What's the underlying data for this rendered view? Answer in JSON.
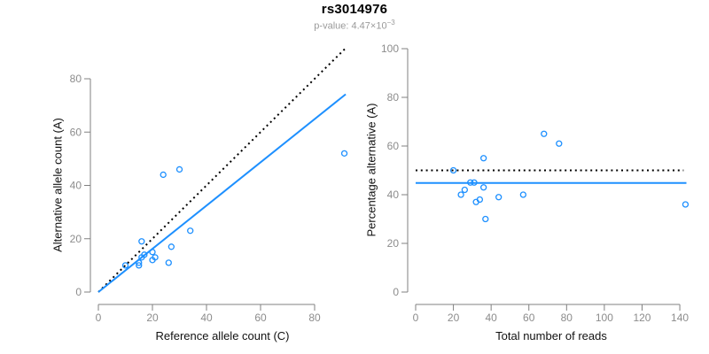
{
  "header": {
    "title": "rs3014976",
    "subtitle_prefix": "p-value: ",
    "subtitle_value": "4.47×10",
    "subtitle_exponent": "−3"
  },
  "colors": {
    "accent_blue": "#1E90FF",
    "reference_black": "#000000",
    "axis_gray": "#808080",
    "tick_label_gray": "#8c8c8c",
    "subtitle_gray": "#9a9a9a"
  },
  "chart_data": [
    {
      "id": "allele-count-scatter",
      "type": "scatter",
      "xlabel": "Reference allele count (C)",
      "ylabel": "Alternative allele count (A)",
      "xlim": [
        0,
        92
      ],
      "ylim": [
        0,
        92
      ],
      "xticks": [
        0,
        20,
        40,
        60,
        80
      ],
      "yticks": [
        0,
        20,
        40,
        60,
        80
      ],
      "grid": false,
      "legend": "none",
      "points": [
        [
          10,
          10
        ],
        [
          15,
          10
        ],
        [
          15,
          11
        ],
        [
          16,
          13
        ],
        [
          17,
          14
        ],
        [
          16,
          19
        ],
        [
          20,
          12
        ],
        [
          20,
          15
        ],
        [
          21,
          13
        ],
        [
          24,
          44
        ],
        [
          26,
          11
        ],
        [
          27,
          17
        ],
        [
          30,
          46
        ],
        [
          34,
          23
        ],
        [
          91,
          52
        ]
      ],
      "lines": [
        {
          "name": "expected-1-to-1",
          "style": "dotted",
          "color": "#000000",
          "from": [
            0,
            0
          ],
          "to": [
            91.5,
            91.5
          ]
        },
        {
          "name": "fitted-proportion",
          "style": "solid",
          "color": "#1E90FF",
          "from": [
            0,
            0
          ],
          "to": [
            91.5,
            74.2
          ]
        }
      ]
    },
    {
      "id": "percentage-vs-reads-scatter",
      "type": "scatter",
      "xlabel": "Total number of reads",
      "ylabel": "Percentage alternative (A)",
      "xlim": [
        0,
        145
      ],
      "ylim": [
        0,
        100
      ],
      "xticks": [
        0,
        20,
        40,
        60,
        80,
        100,
        120,
        140
      ],
      "yticks": [
        0,
        20,
        40,
        60,
        80,
        100
      ],
      "grid": false,
      "legend": "none",
      "points": [
        [
          20,
          50
        ],
        [
          24,
          40
        ],
        [
          26,
          42
        ],
        [
          29,
          45
        ],
        [
          31,
          45
        ],
        [
          32,
          37
        ],
        [
          34,
          38
        ],
        [
          36,
          43
        ],
        [
          36,
          55
        ],
        [
          37,
          30
        ],
        [
          44,
          39
        ],
        [
          57,
          40
        ],
        [
          68,
          65
        ],
        [
          76,
          61
        ],
        [
          143,
          36
        ]
      ],
      "lines": [
        {
          "name": "expected-50-percent",
          "style": "dotted",
          "color": "#000000",
          "from": [
            0,
            50
          ],
          "to": [
            142,
            50
          ]
        },
        {
          "name": "fitted-proportion",
          "style": "solid",
          "color": "#1E90FF",
          "from": [
            0,
            44.8
          ],
          "to": [
            143.5,
            44.8
          ]
        }
      ]
    }
  ]
}
